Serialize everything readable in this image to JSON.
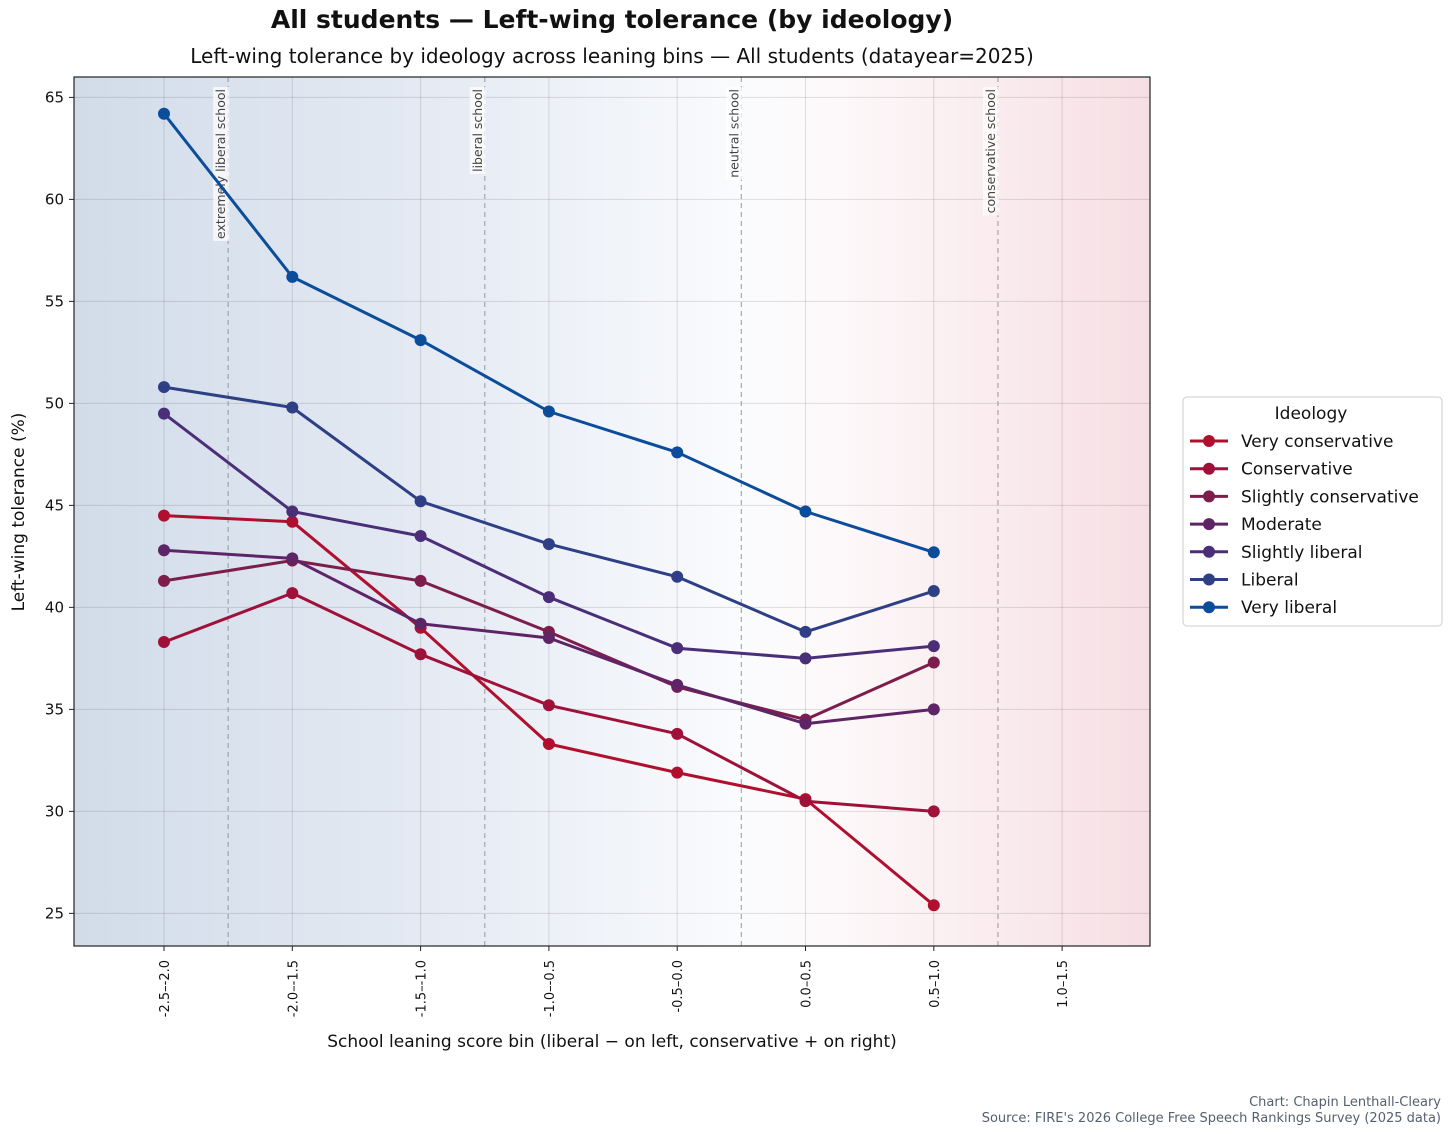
{
  "chart_data": {
    "type": "line",
    "title": "All students — Left-wing tolerance (by ideology)",
    "subtitle": "Left-wing tolerance by ideology across leaning bins — All students (datayear=2025)",
    "xlabel": "School leaning score bin (liberal − on left, conservative + on right)",
    "ylabel": "Left-wing tolerance (%)",
    "categories": [
      "-2.5–-2.0",
      "-2.0–-1.5",
      "-1.5–-1.0",
      "-1.0–-0.5",
      "-0.5–0.0",
      "0.0–0.5",
      "0.5–1.0",
      "1.0–1.5"
    ],
    "ylim": [
      23.4,
      66
    ],
    "yticks": [
      25,
      30,
      35,
      40,
      45,
      50,
      55,
      60,
      65
    ],
    "grid": true,
    "reference_lines": [
      {
        "label": "extremely liberal school",
        "x": 0.5
      },
      {
        "label": "liberal school",
        "x": 2.5
      },
      {
        "label": "neutral school",
        "x": 4.5
      },
      {
        "label": "conservative school",
        "x": 6.5
      }
    ],
    "legend": {
      "title": "Ideology",
      "placement": "right"
    },
    "series": [
      {
        "name": "Very conservative",
        "color": "#b0102e",
        "values": [
          44.5,
          44.2,
          39.0,
          33.3,
          31.9,
          30.6,
          25.4,
          null
        ]
      },
      {
        "name": "Conservative",
        "color": "#a0113a",
        "values": [
          38.3,
          40.7,
          37.7,
          35.2,
          33.8,
          30.5,
          30.0,
          null
        ]
      },
      {
        "name": "Slightly conservative",
        "color": "#7d1d4c",
        "values": [
          41.3,
          42.3,
          41.3,
          38.8,
          36.1,
          34.5,
          37.3,
          null
        ]
      },
      {
        "name": "Moderate",
        "color": "#5e2566",
        "values": [
          42.8,
          42.4,
          39.2,
          38.5,
          36.2,
          34.3,
          35.0,
          null
        ]
      },
      {
        "name": "Slightly liberal",
        "color": "#4a2f78",
        "values": [
          49.5,
          44.7,
          43.5,
          40.5,
          38.0,
          37.5,
          38.1,
          null
        ]
      },
      {
        "name": "Liberal",
        "color": "#2e3f86",
        "values": [
          50.8,
          49.8,
          45.2,
          43.1,
          41.5,
          38.8,
          40.8,
          null
        ]
      },
      {
        "name": "Very liberal",
        "color": "#0b4d9a",
        "values": [
          64.2,
          56.2,
          53.1,
          49.6,
          47.6,
          44.7,
          42.7,
          null
        ]
      }
    ]
  },
  "credits": {
    "author": "Chart: Chapin Lenthall-Cleary",
    "source": "Source: FIRE's 2026 College Free Speech Rankings Survey (2025 data)"
  }
}
